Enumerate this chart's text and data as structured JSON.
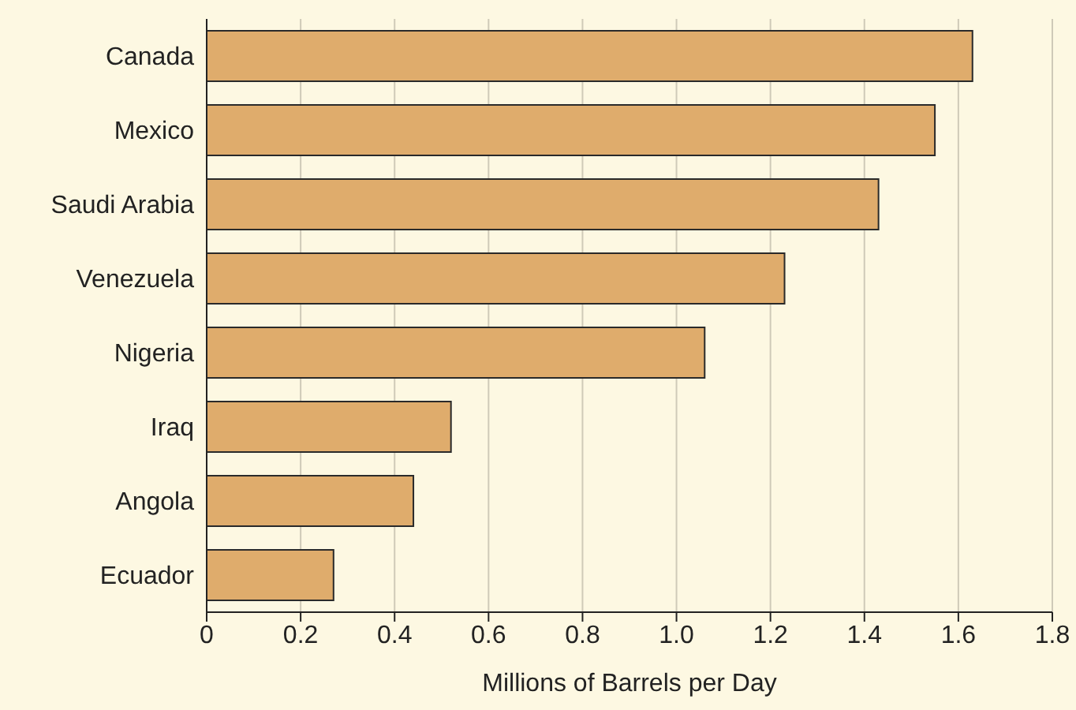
{
  "chart_data": {
    "type": "bar",
    "orientation": "horizontal",
    "xlabel": "Millions of Barrels per Day",
    "categories": [
      "Canada",
      "Mexico",
      "Saudi Arabia",
      "Venezuela",
      "Nigeria",
      "Iraq",
      "Angola",
      "Ecuador"
    ],
    "values": [
      1.63,
      1.55,
      1.43,
      1.23,
      1.06,
      0.52,
      0.44,
      0.27
    ],
    "color": "#dfac6c",
    "xlim": [
      0,
      1.8
    ],
    "xticks": [
      0,
      0.2,
      0.4,
      0.6,
      0.8,
      {
        "value": 1,
        "label": "1.0"
      },
      1.2,
      1.4,
      1.6,
      1.8
    ],
    "grid": "x",
    "legend": false
  }
}
